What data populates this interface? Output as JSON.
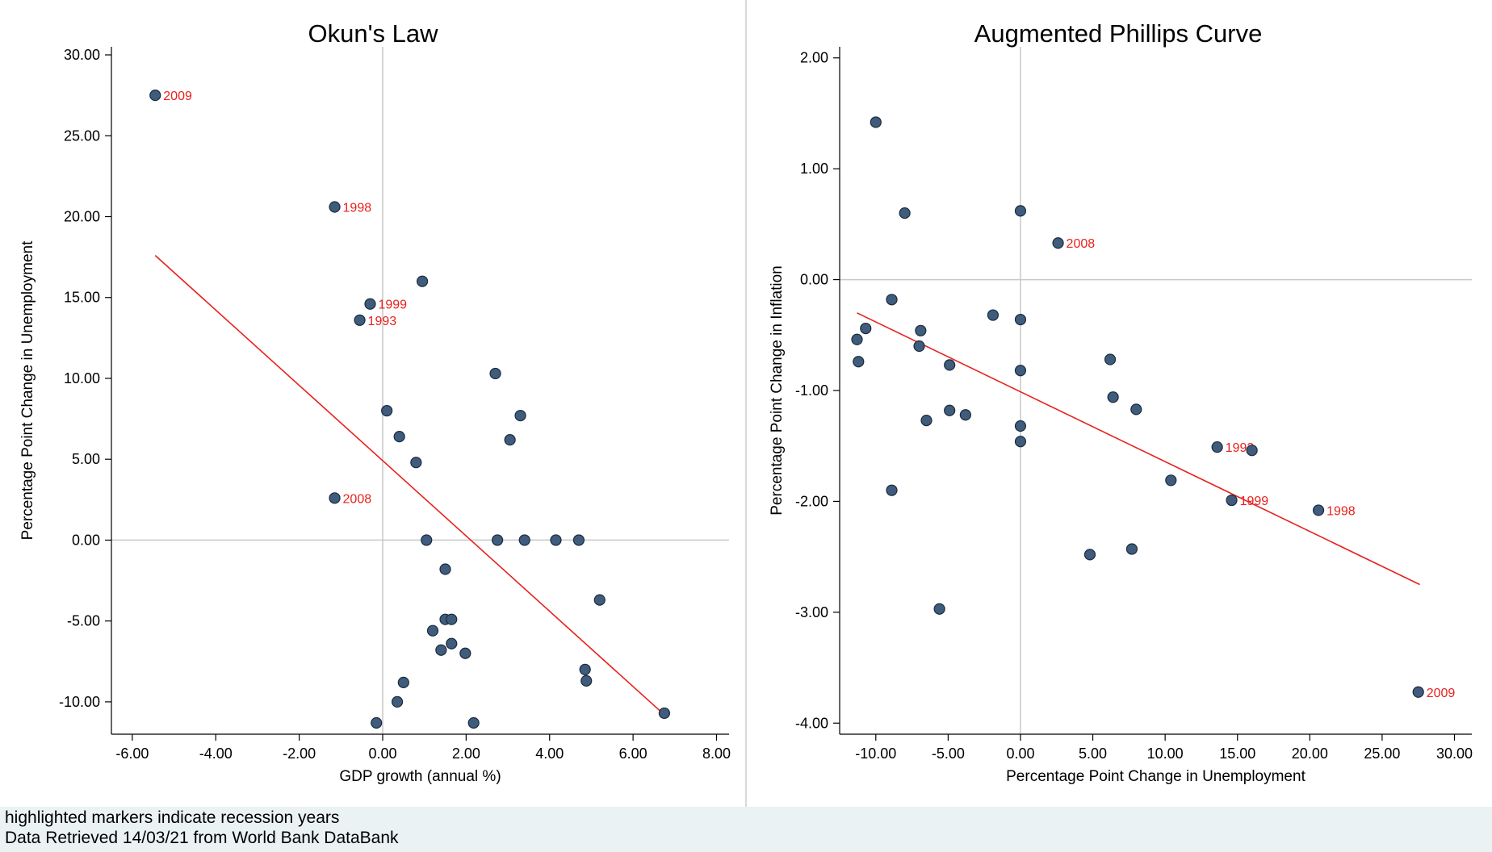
{
  "notes": {
    "line1": "highlighted markers indicate recession years",
    "line2": "Data Retrieved 14/03/21 from World Bank DataBank"
  },
  "colors": {
    "marker_fill": "#3f5c7d",
    "marker_stroke": "#1b2a3c",
    "fit_line": "#e8211d",
    "label": "#e8211d",
    "reference_line": "#c8c8c8",
    "axis": "#000000"
  },
  "chart_data": [
    {
      "type": "scatter",
      "title": "Okun's Law",
      "xlabel": "GDP growth (annual %)",
      "ylabel": "Percentage Point Change in Unemployment",
      "xlim": [
        -6.5,
        8.3
      ],
      "ylim": [
        -12,
        30.5
      ],
      "xticks": [
        "-6.00",
        "-4.00",
        "-2.00",
        "0.00",
        "2.00",
        "4.00",
        "6.00",
        "8.00"
      ],
      "yticks": [
        "-10.00",
        "-5.00",
        "0.00",
        "5.00",
        "10.00",
        "15.00",
        "20.00",
        "25.00",
        "30.00"
      ],
      "reference_lines": {
        "x": 0,
        "y": 0
      },
      "fit_line": {
        "x": [
          -5.45,
          6.75
        ],
        "y": [
          17.6,
          -10.8
        ]
      },
      "points": [
        {
          "x": -5.45,
          "y": 27.5,
          "label": "2009"
        },
        {
          "x": -1.15,
          "y": 20.6,
          "label": "1998"
        },
        {
          "x": -0.3,
          "y": 14.6,
          "label": "1999"
        },
        {
          "x": -0.55,
          "y": 13.6,
          "label": "1993"
        },
        {
          "x": -1.15,
          "y": 2.6,
          "label": "2008"
        },
        {
          "x": 0.95,
          "y": 16.0
        },
        {
          "x": 2.7,
          "y": 10.3
        },
        {
          "x": 3.3,
          "y": 7.7
        },
        {
          "x": 3.05,
          "y": 6.2
        },
        {
          "x": 0.1,
          "y": 8.0
        },
        {
          "x": 0.4,
          "y": 6.4
        },
        {
          "x": 0.8,
          "y": 4.8
        },
        {
          "x": 1.05,
          "y": 0.0
        },
        {
          "x": 2.75,
          "y": 0.0
        },
        {
          "x": 3.4,
          "y": 0.0
        },
        {
          "x": 4.15,
          "y": 0.0
        },
        {
          "x": 4.7,
          "y": 0.0
        },
        {
          "x": 1.5,
          "y": -1.8
        },
        {
          "x": 5.2,
          "y": -3.7
        },
        {
          "x": 1.5,
          "y": -4.9
        },
        {
          "x": 1.65,
          "y": -4.9
        },
        {
          "x": 1.2,
          "y": -5.6
        },
        {
          "x": 1.65,
          "y": -6.4
        },
        {
          "x": 1.4,
          "y": -6.8
        },
        {
          "x": 1.98,
          "y": -7.0
        },
        {
          "x": 4.85,
          "y": -8.0
        },
        {
          "x": 4.88,
          "y": -8.7
        },
        {
          "x": 0.5,
          "y": -8.8
        },
        {
          "x": 0.35,
          "y": -10.0
        },
        {
          "x": 6.75,
          "y": -10.7
        },
        {
          "x": -0.15,
          "y": -11.3
        },
        {
          "x": 2.18,
          "y": -11.3
        }
      ]
    },
    {
      "type": "scatter",
      "title": "Augmented Phillips Curve",
      "xlabel": "Percentage Point Change in Unemployment",
      "ylabel": "Percentage Point Change in Inflation",
      "xlim": [
        -12.5,
        31.2
      ],
      "ylim": [
        -4.1,
        2.1
      ],
      "xticks": [
        "-10.00",
        "-5.00",
        "0.00",
        "5.00",
        "10.00",
        "15.00",
        "20.00",
        "25.00",
        "30.00"
      ],
      "yticks": [
        "-4.00",
        "-3.00",
        "-2.00",
        "-1.00",
        "0.00",
        "1.00",
        "2.00"
      ],
      "reference_lines": {
        "x": 0,
        "y": 0
      },
      "fit_line": {
        "x": [
          -11.3,
          27.6
        ],
        "y": [
          -0.3,
          -2.75
        ]
      },
      "points": [
        {
          "x": -10.0,
          "y": 1.42
        },
        {
          "x": -8.0,
          "y": 0.6
        },
        {
          "x": 0.0,
          "y": 0.62
        },
        {
          "x": 2.6,
          "y": 0.33,
          "label": "2008"
        },
        {
          "x": -8.9,
          "y": -0.18
        },
        {
          "x": -1.9,
          "y": -0.32
        },
        {
          "x": 0.0,
          "y": -0.36
        },
        {
          "x": -10.7,
          "y": -0.44
        },
        {
          "x": -6.9,
          "y": -0.46
        },
        {
          "x": -11.3,
          "y": -0.54
        },
        {
          "x": -7.0,
          "y": -0.6
        },
        {
          "x": -11.2,
          "y": -0.74
        },
        {
          "x": 6.2,
          "y": -0.72
        },
        {
          "x": -4.9,
          "y": -0.77
        },
        {
          "x": 0.0,
          "y": -0.82
        },
        {
          "x": 6.4,
          "y": -1.06
        },
        {
          "x": -4.9,
          "y": -1.18
        },
        {
          "x": 8.0,
          "y": -1.17
        },
        {
          "x": -3.8,
          "y": -1.22
        },
        {
          "x": -6.5,
          "y": -1.27
        },
        {
          "x": 0.0,
          "y": -1.32
        },
        {
          "x": 0.0,
          "y": -1.46
        },
        {
          "x": 13.6,
          "y": -1.51,
          "label": "1993"
        },
        {
          "x": 16.0,
          "y": -1.54
        },
        {
          "x": 10.4,
          "y": -1.81
        },
        {
          "x": -8.9,
          "y": -1.9
        },
        {
          "x": 14.6,
          "y": -1.99,
          "label": "1999"
        },
        {
          "x": 20.6,
          "y": -2.08,
          "label": "1998"
        },
        {
          "x": 7.7,
          "y": -2.43
        },
        {
          "x": 4.8,
          "y": -2.48
        },
        {
          "x": -5.6,
          "y": -2.97
        },
        {
          "x": 27.5,
          "y": -3.72,
          "label": "2009"
        }
      ]
    }
  ]
}
